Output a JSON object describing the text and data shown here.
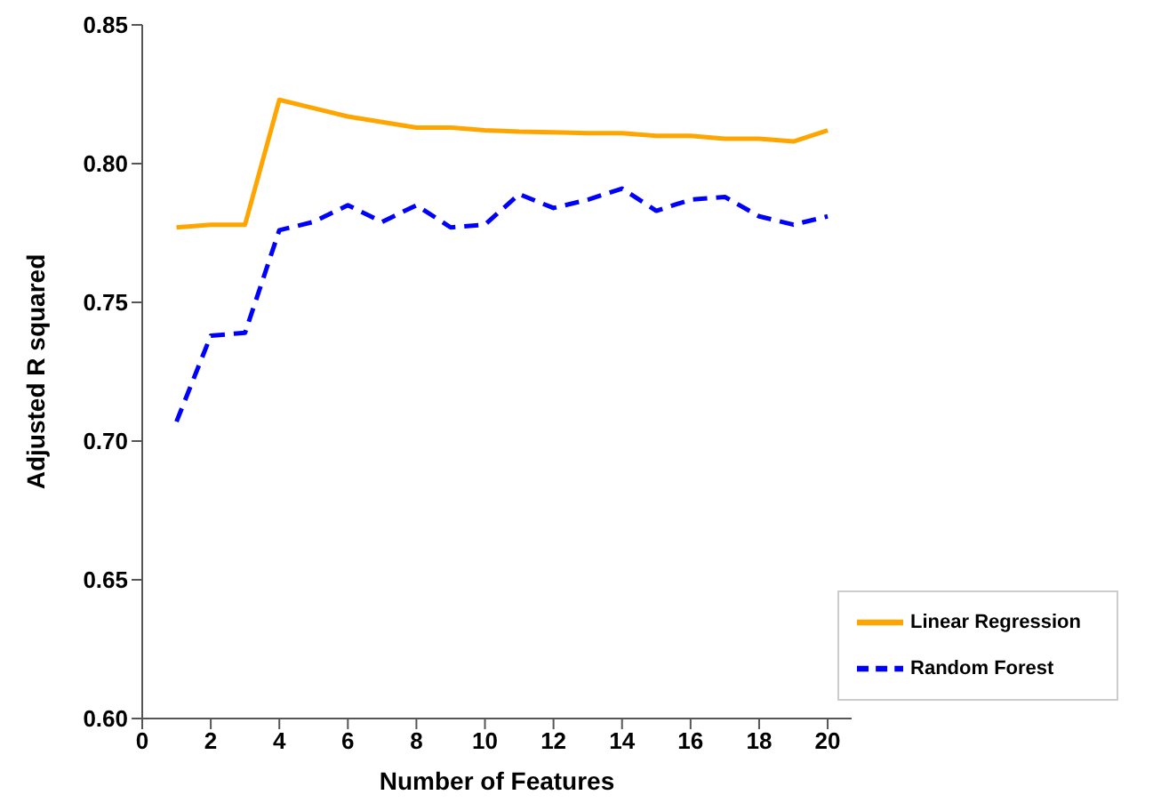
{
  "chart_data": {
    "type": "line",
    "xlabel": "Number of Features",
    "ylabel": "Adjusted R squared",
    "x": [
      1,
      2,
      3,
      4,
      5,
      6,
      7,
      8,
      9,
      10,
      11,
      12,
      13,
      14,
      15,
      16,
      17,
      18,
      19,
      20
    ],
    "series": [
      {
        "name": "Linear Regression",
        "color": "#ffa500",
        "line_style": "solid",
        "values": [
          0.777,
          0.778,
          0.778,
          0.823,
          0.82,
          0.817,
          0.815,
          0.813,
          0.813,
          0.812,
          0.8115,
          0.8113,
          0.811,
          0.811,
          0.81,
          0.81,
          0.809,
          0.809,
          0.808,
          0.812
        ]
      },
      {
        "name": "Random Forest",
        "color": "#0000ff",
        "line_style": "dashed",
        "values": [
          0.707,
          0.738,
          0.739,
          0.776,
          0.779,
          0.785,
          0.779,
          0.785,
          0.777,
          0.778,
          0.789,
          0.784,
          0.787,
          0.791,
          0.783,
          0.787,
          0.788,
          0.781,
          0.778,
          0.781
        ]
      }
    ],
    "xlim": [
      0,
      20.7
    ],
    "xticks": [
      0,
      2,
      4,
      6,
      8,
      10,
      12,
      14,
      16,
      18,
      20
    ],
    "ylim": [
      0.6,
      0.85
    ],
    "yticks": [
      {
        "value": 0.6,
        "label": "0.60"
      },
      0.65,
      {
        "value": 0.7,
        "label": "0.70"
      },
      0.75,
      {
        "value": 0.8,
        "label": "0.80"
      },
      0.85
    ],
    "grid": false,
    "legend": "bottom right",
    "marker": "none"
  }
}
